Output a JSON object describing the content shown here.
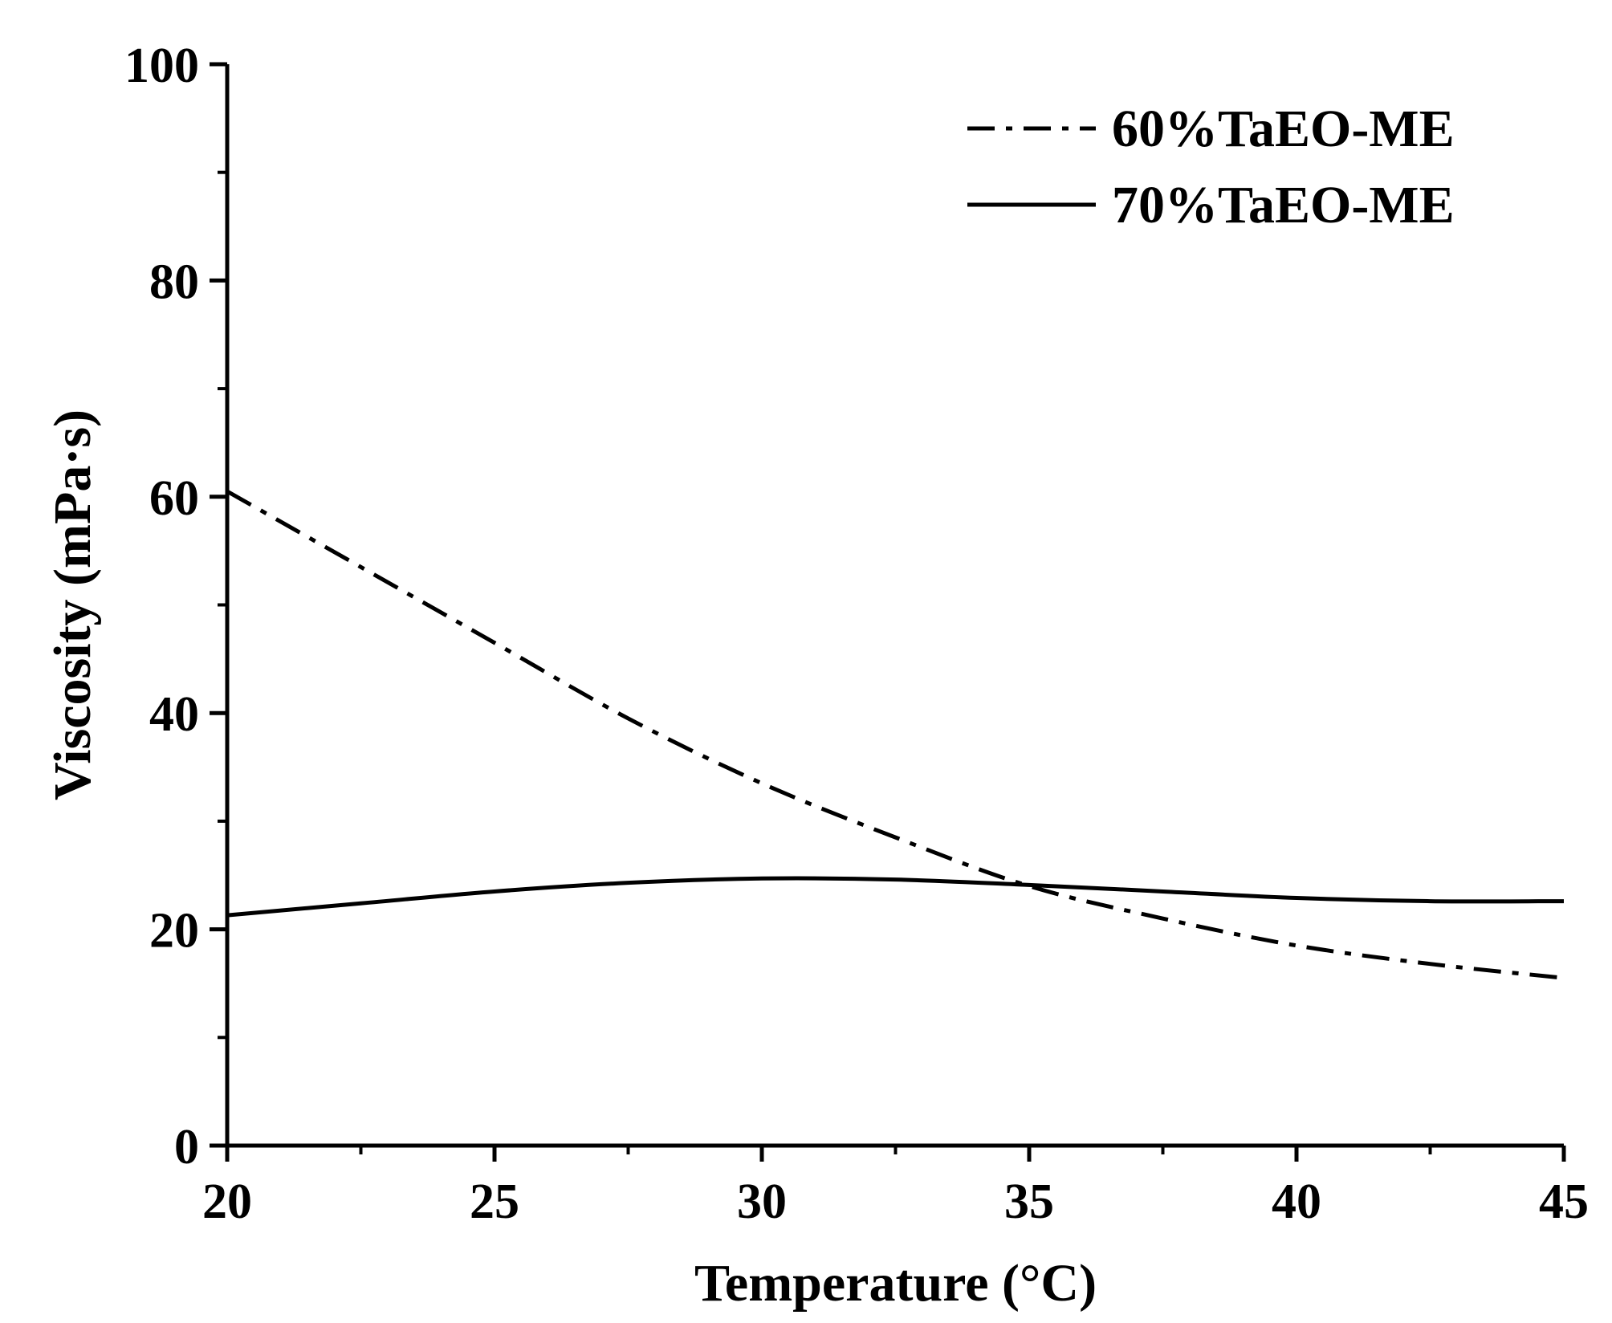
{
  "chart_data": {
    "type": "line",
    "title": "",
    "xlabel": "Temperature (°C)",
    "ylabel": "Viscosity (mPa·s)",
    "xlim": [
      20,
      45
    ],
    "ylim": [
      0,
      100
    ],
    "x_major_ticks": [
      20,
      25,
      30,
      35,
      40,
      45
    ],
    "x_minor_ticks": [
      22.5,
      27.5,
      32.5,
      37.5,
      42.5
    ],
    "y_major_ticks": [
      0,
      20,
      40,
      60,
      80,
      100
    ],
    "y_minor_ticks": [
      10,
      30,
      50,
      70,
      90
    ],
    "legend_position": "top-right",
    "grid": false,
    "series": [
      {
        "name": "60%TaEO-ME",
        "style": "dash-dot",
        "color": "#000000",
        "x": [
          20,
          22.5,
          25,
          27.5,
          30,
          32.5,
          35,
          37.5,
          40,
          42.5,
          45
        ],
        "y": [
          60.5,
          53.5,
          46.5,
          39.5,
          33.5,
          28.5,
          24.0,
          21.0,
          18.5,
          16.8,
          15.5
        ]
      },
      {
        "name": "70%TaEO-ME",
        "style": "solid",
        "color": "#000000",
        "x": [
          20,
          22.5,
          25,
          27.5,
          30,
          32.5,
          35,
          37.5,
          40,
          42.5,
          45
        ],
        "y": [
          21.3,
          22.4,
          23.5,
          24.3,
          24.7,
          24.6,
          24.1,
          23.5,
          22.9,
          22.6,
          22.6
        ]
      }
    ]
  }
}
